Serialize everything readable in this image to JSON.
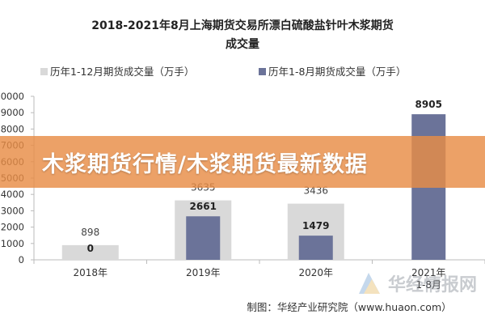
{
  "chart_data": {
    "type": "bar",
    "title_line1": "2018-2021年8月上海期货交易所漂白硫酸盐针叶木浆期货",
    "title_line2": "成交量",
    "categories": [
      "2018年",
      "2019年",
      "2020年",
      "2021年1-8月"
    ],
    "series": [
      {
        "name": "历年1-12月期货成交量（万手）",
        "color": "#d9d9d9",
        "values": [
          898,
          3635,
          3436,
          null
        ]
      },
      {
        "name": "历年1-8月期货成交量（万手）",
        "color": "#6b7399",
        "values": [
          0,
          2661,
          1479,
          8905
        ]
      }
    ],
    "ylim": [
      0,
      10000
    ],
    "yticks": [
      0,
      1000,
      2000,
      3000,
      4000,
      5000,
      6000,
      7000,
      8000,
      9000,
      10000
    ],
    "ytick_labels": [
      "0",
      "1000",
      "2000",
      "3000",
      "4000",
      "5000",
      "6000",
      "7000",
      "8000",
      "9000",
      "10000"
    ],
    "legend_position": "top",
    "grid": false
  },
  "source_note": "制图：华经产业研究院（www.huaon.com）",
  "overlay_banner": "木浆期货行情/木浆期货最新数据",
  "watermark_text": "华经情报网",
  "watermark_icon": "huajing-logo-icon"
}
